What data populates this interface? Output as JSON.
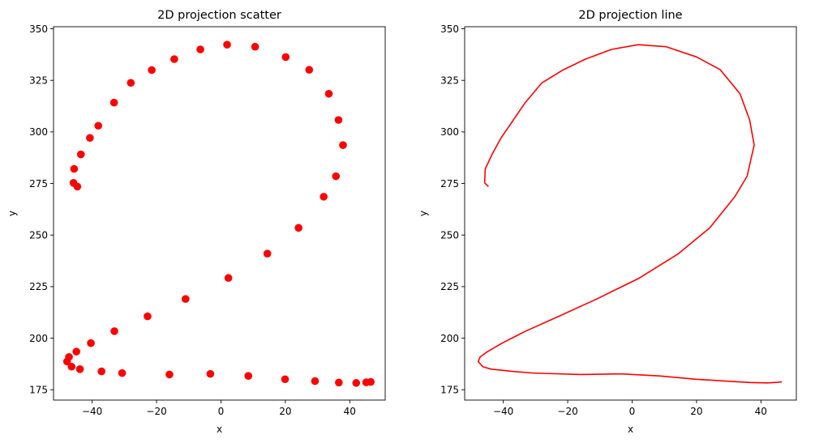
{
  "chart_data": [
    {
      "type": "scatter",
      "title": "2D projection scatter",
      "xlabel": "x",
      "ylabel": "y",
      "xlim": [
        -52,
        51
      ],
      "ylim": [
        170,
        351
      ],
      "xticks": [
        -40,
        -20,
        0,
        20,
        40
      ],
      "yticks": [
        175,
        200,
        225,
        250,
        275,
        300,
        325,
        350
      ],
      "grid": false,
      "color": "#ff0000",
      "points": [
        [
          -44.6,
          273.5
        ],
        [
          -45.8,
          275.3
        ],
        [
          -45.6,
          282.1
        ],
        [
          -43.5,
          289.1
        ],
        [
          -40.7,
          297.1
        ],
        [
          -38.1,
          303.0
        ],
        [
          -33.2,
          314.2
        ],
        [
          -28.0,
          323.8
        ],
        [
          -21.5,
          330.0
        ],
        [
          -14.5,
          335.3
        ],
        [
          -6.4,
          340.0
        ],
        [
          1.9,
          342.3
        ],
        [
          10.6,
          341.3
        ],
        [
          20.1,
          336.3
        ],
        [
          27.4,
          330.1
        ],
        [
          33.5,
          318.5
        ],
        [
          36.5,
          305.8
        ],
        [
          37.9,
          293.6
        ],
        [
          35.7,
          278.5
        ],
        [
          31.9,
          268.6
        ],
        [
          24.1,
          253.5
        ],
        [
          14.4,
          241.0
        ],
        [
          2.3,
          229.2
        ],
        [
          -11.0,
          219.0
        ],
        [
          -22.8,
          210.6
        ],
        [
          -33.1,
          203.4
        ],
        [
          -40.4,
          197.6
        ],
        [
          -44.9,
          193.5
        ],
        [
          -47.2,
          190.9
        ],
        [
          -47.8,
          188.7
        ],
        [
          -46.4,
          186.2
        ],
        [
          -43.8,
          185.0
        ],
        [
          -37.1,
          183.9
        ],
        [
          -30.7,
          183.1
        ],
        [
          -16.0,
          182.4
        ],
        [
          -3.3,
          182.7
        ],
        [
          8.5,
          181.7
        ],
        [
          19.9,
          180.1
        ],
        [
          29.2,
          179.2
        ],
        [
          36.6,
          178.5
        ],
        [
          42.0,
          178.3
        ],
        [
          45.1,
          178.6
        ],
        [
          46.5,
          178.8
        ]
      ]
    },
    {
      "type": "line",
      "title": "2D projection line",
      "xlabel": "x",
      "ylabel": "y",
      "xlim": [
        -52,
        51
      ],
      "ylim": [
        170,
        351
      ],
      "xticks": [
        -40,
        -20,
        0,
        20,
        40
      ],
      "yticks": [
        175,
        200,
        225,
        250,
        275,
        300,
        325,
        350
      ],
      "grid": false,
      "color": "#ff0000",
      "points": [
        [
          -44.6,
          273.5
        ],
        [
          -45.8,
          275.3
        ],
        [
          -45.6,
          282.1
        ],
        [
          -43.5,
          289.1
        ],
        [
          -40.7,
          297.1
        ],
        [
          -38.1,
          303.0
        ],
        [
          -33.2,
          314.2
        ],
        [
          -28.0,
          323.8
        ],
        [
          -21.5,
          330.0
        ],
        [
          -14.5,
          335.3
        ],
        [
          -6.4,
          340.0
        ],
        [
          1.9,
          342.3
        ],
        [
          10.6,
          341.3
        ],
        [
          20.1,
          336.3
        ],
        [
          27.4,
          330.1
        ],
        [
          33.5,
          318.5
        ],
        [
          36.5,
          305.8
        ],
        [
          37.9,
          293.6
        ],
        [
          35.7,
          278.5
        ],
        [
          31.9,
          268.6
        ],
        [
          24.1,
          253.5
        ],
        [
          14.4,
          241.0
        ],
        [
          2.3,
          229.2
        ],
        [
          -11.0,
          219.0
        ],
        [
          -22.8,
          210.6
        ],
        [
          -33.1,
          203.4
        ],
        [
          -40.4,
          197.6
        ],
        [
          -44.9,
          193.5
        ],
        [
          -47.2,
          190.9
        ],
        [
          -47.8,
          188.7
        ],
        [
          -46.4,
          186.2
        ],
        [
          -43.8,
          185.0
        ],
        [
          -37.1,
          183.9
        ],
        [
          -30.7,
          183.1
        ],
        [
          -16.0,
          182.4
        ],
        [
          -3.3,
          182.7
        ],
        [
          8.5,
          181.7
        ],
        [
          19.9,
          180.1
        ],
        [
          29.2,
          179.2
        ],
        [
          36.6,
          178.5
        ],
        [
          42.0,
          178.3
        ],
        [
          45.1,
          178.6
        ],
        [
          46.5,
          178.8
        ]
      ]
    }
  ]
}
